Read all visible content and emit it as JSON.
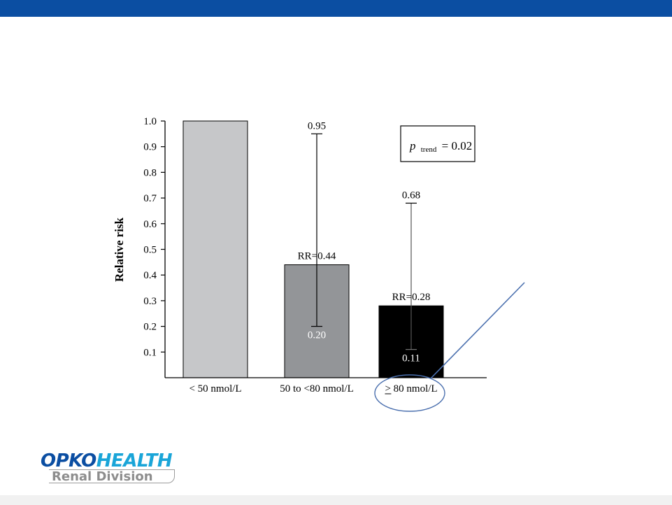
{
  "slide": {
    "top_bar_color": "#0b4ea2",
    "logo": {
      "part1": "OPKO",
      "part2": "HEALTH",
      "subtitle": "Renal Division"
    }
  },
  "chart_data": {
    "type": "bar",
    "categories": [
      "< 50 nmol/L",
      "50 to <80 nmol/L",
      "> 80 nmol/L"
    ],
    "category_prefix_underlined": [
      false,
      false,
      true
    ],
    "values": [
      1.0,
      0.44,
      0.28
    ],
    "bar_colors": [
      "#c6c7c9",
      "#939598",
      "#000000"
    ],
    "error_bars": [
      null,
      {
        "lower": 0.2,
        "upper": 0.95
      },
      {
        "lower": 0.11,
        "upper": 0.68
      }
    ],
    "bar_labels": [
      "",
      "RR=0.44",
      "RR=0.28"
    ],
    "ci_upper_labels": [
      "",
      "0.95",
      "0.68"
    ],
    "ci_lower_labels": [
      "",
      "0.20",
      "0.11"
    ],
    "ylabel": "Relative risk",
    "xlabel": "",
    "title": "",
    "ylim": [
      0,
      1.0
    ],
    "yticks": [
      "0.1",
      "0.2",
      "0.3",
      "0.4",
      "0.5",
      "0.6",
      "0.7",
      "0.8",
      "0.9",
      "1.0"
    ],
    "annotation": {
      "p_symbol": "p",
      "subscript": "trend",
      "value": "= 0.02"
    },
    "highlight_color": "#4a6fae"
  }
}
